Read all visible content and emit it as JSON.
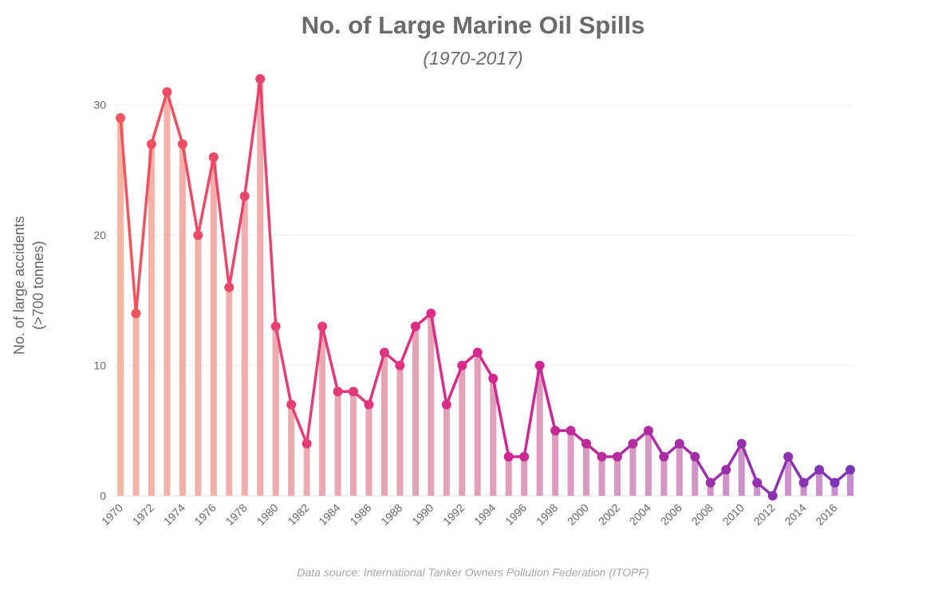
{
  "chart_data": {
    "type": "line",
    "title": "No. of Large Marine Oil Spills",
    "subtitle": "(1970-2017)",
    "ylabel_line1": "No. of large accidents",
    "ylabel_line2": "(>700 tonnes)",
    "xlabel": "",
    "source": "Data source: International Tanker Owners Pollution Federation (ITOPF)",
    "ylim": [
      0,
      32
    ],
    "yticks": [
      0,
      10,
      20,
      30
    ],
    "xtick_labels": [
      "1970",
      "1972",
      "1974",
      "1976",
      "1978",
      "1980",
      "1982",
      "1984",
      "1986",
      "1988",
      "1990",
      "1992",
      "1994",
      "1996",
      "1998",
      "2000",
      "2002",
      "2004",
      "2006",
      "2008",
      "2010",
      "2012",
      "2014",
      "2016"
    ],
    "grid": true,
    "x": [
      1970,
      1971,
      1972,
      1973,
      1974,
      1975,
      1976,
      1977,
      1978,
      1979,
      1980,
      1981,
      1982,
      1983,
      1984,
      1985,
      1986,
      1987,
      1988,
      1989,
      1990,
      1991,
      1992,
      1993,
      1994,
      1995,
      1996,
      1997,
      1998,
      1999,
      2000,
      2001,
      2002,
      2003,
      2004,
      2005,
      2006,
      2007,
      2008,
      2009,
      2010,
      2011,
      2012,
      2013,
      2014,
      2015,
      2016,
      2017
    ],
    "values": [
      29,
      14,
      27,
      31,
      27,
      20,
      26,
      16,
      23,
      32,
      13,
      7,
      4,
      13,
      8,
      8,
      7,
      11,
      10,
      13,
      14,
      7,
      10,
      11,
      9,
      3,
      3,
      10,
      5,
      5,
      4,
      3,
      3,
      4,
      5,
      3,
      4,
      3,
      1,
      2,
      4,
      1,
      0,
      3,
      1,
      2,
      1,
      2
    ],
    "colors": {
      "line_start": "#f2545b",
      "line_mid": "#d7268f",
      "line_end": "#7b35b8",
      "bar_start": "#f8b4a4",
      "bar_end": "#c98ad0",
      "grid": "#eeeeee",
      "text": "#666666"
    }
  }
}
